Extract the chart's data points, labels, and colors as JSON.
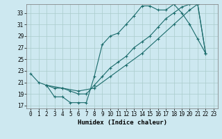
{
  "xlabel": "Humidex (Indice chaleur)",
  "background_color": "#cde8f0",
  "grid_color": "#aacccc",
  "line_color": "#1a6b6b",
  "xlim": [
    -0.5,
    23.5
  ],
  "ylim": [
    16.5,
    34.5
  ],
  "yticks": [
    17,
    19,
    21,
    23,
    25,
    27,
    29,
    31,
    33
  ],
  "xticks": [
    0,
    1,
    2,
    3,
    4,
    5,
    6,
    7,
    8,
    9,
    10,
    11,
    12,
    13,
    14,
    15,
    16,
    17,
    18,
    19,
    20,
    21,
    22,
    23
  ],
  "line1_x": [
    0,
    1,
    2,
    3,
    4,
    5,
    6,
    7,
    8,
    9,
    10,
    11,
    12,
    13,
    14,
    15,
    16,
    17,
    18,
    19,
    20,
    21,
    22
  ],
  "line1_y": [
    22.5,
    21.0,
    20.5,
    18.5,
    18.5,
    17.5,
    17.5,
    17.5,
    22.0,
    27.5,
    29.0,
    29.5,
    31.0,
    32.5,
    34.2,
    34.2,
    33.5,
    33.5,
    34.5,
    33.0,
    31.0,
    28.5,
    26.0
  ],
  "line2_x": [
    2,
    3,
    4,
    5,
    6,
    7,
    8,
    9,
    10,
    11,
    12,
    13,
    14,
    15,
    16,
    17,
    18,
    19,
    20,
    21,
    22
  ],
  "line2_y": [
    20.5,
    20.0,
    20.0,
    19.5,
    19.0,
    19.0,
    20.5,
    22.0,
    23.5,
    24.5,
    25.5,
    27.0,
    28.0,
    29.0,
    30.5,
    32.0,
    33.0,
    34.0,
    34.5,
    34.5,
    26.0
  ],
  "line3_x": [
    2,
    4,
    6,
    8,
    10,
    12,
    14,
    16,
    18,
    20,
    21,
    22
  ],
  "line3_y": [
    20.5,
    20.0,
    19.5,
    20.0,
    22.0,
    24.0,
    26.0,
    28.5,
    31.0,
    33.5,
    34.5,
    26.0
  ]
}
